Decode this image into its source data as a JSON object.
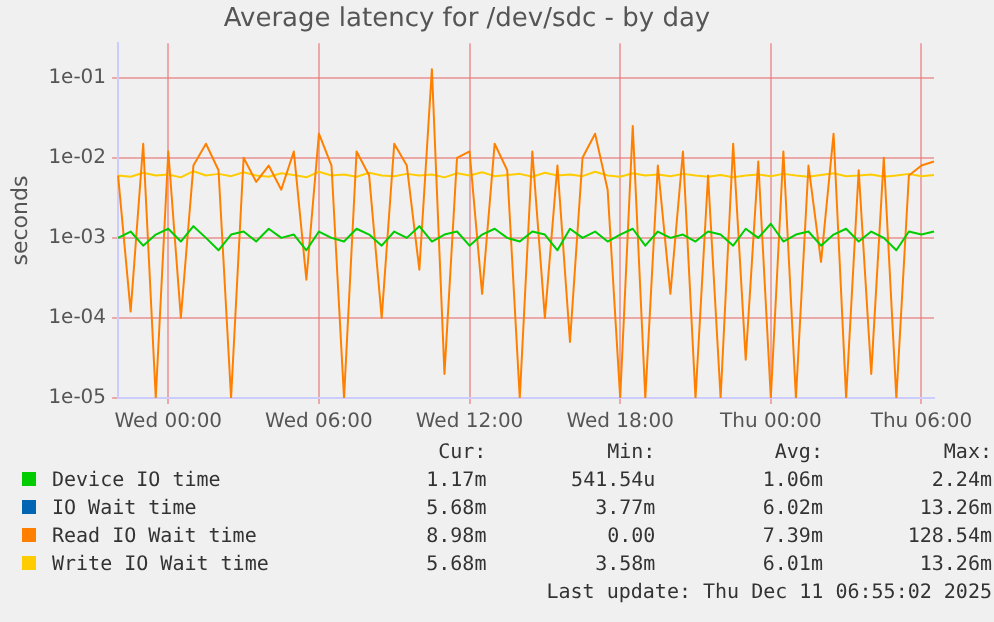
{
  "chart_data": {
    "type": "line",
    "title": "Average latency for /dev/sdc - by day",
    "ylabel": "seconds",
    "categories": [
      null,
      null,
      null,
      null,
      "Wed 00:00",
      null,
      null,
      null,
      null,
      null,
      null,
      null,
      null,
      null,
      null,
      null,
      "Wed 06:00",
      null,
      null,
      null,
      null,
      null,
      null,
      null,
      null,
      null,
      null,
      null,
      "Wed 12:00",
      null,
      null,
      null,
      null,
      null,
      null,
      null,
      null,
      null,
      null,
      null,
      "Wed 18:00",
      null,
      null,
      null,
      null,
      null,
      null,
      null,
      null,
      null,
      null,
      null,
      "Thu 00:00",
      null,
      null,
      null,
      null,
      null,
      null,
      null,
      null,
      null,
      null,
      null,
      "Thu 06:00",
      null
    ],
    "ylim": [
      1e-05,
      0.27
    ],
    "yticks": [
      {
        "value": 1e-05,
        "label": "1e-05"
      },
      {
        "value": 0.0001,
        "label": "1e-04"
      },
      {
        "value": 0.001,
        "label": "1e-03"
      },
      {
        "value": 0.01,
        "label": "1e-02"
      },
      {
        "value": 0.1,
        "label": "1e-01"
      }
    ],
    "log": "y",
    "grid": true,
    "legend": "bottom",
    "marker": "none",
    "line_style": "solid",
    "series": [
      {
        "name": "Device IO time",
        "color": "#00cc00",
        "values": [
          0.001,
          0.0012,
          0.0008,
          0.0011,
          0.0013,
          0.0009,
          0.0014,
          0.001,
          0.0007,
          0.0011,
          0.0012,
          0.0009,
          0.0013,
          0.001,
          0.0011,
          0.0007,
          0.0012,
          0.001,
          0.0009,
          0.0013,
          0.0011,
          0.0008,
          0.0012,
          0.001,
          0.0014,
          0.0009,
          0.0011,
          0.0012,
          0.0008,
          0.0011,
          0.0013,
          0.001,
          0.0009,
          0.0012,
          0.0011,
          0.0007,
          0.0013,
          0.001,
          0.0012,
          0.0009,
          0.0011,
          0.0013,
          0.0008,
          0.0012,
          0.001,
          0.0011,
          0.0009,
          0.0012,
          0.0011,
          0.0008,
          0.0013,
          0.001,
          0.0015,
          0.0009,
          0.0011,
          0.0012,
          0.0008,
          0.0011,
          0.0013,
          0.0009,
          0.0012,
          0.001,
          0.0007,
          0.0012,
          0.0011,
          0.0012
        ]
      },
      {
        "name": "IO Wait time",
        "color": "#0066b3",
        "values": [
          null,
          null,
          null,
          null,
          null,
          null,
          null,
          null,
          null,
          null,
          null,
          null,
          null,
          null,
          null,
          null,
          null,
          null,
          null,
          null,
          null,
          null,
          null,
          null,
          null,
          null,
          null,
          null,
          null,
          null,
          null,
          null,
          null,
          null,
          null,
          null,
          null,
          null,
          null,
          null,
          null,
          null,
          null,
          null,
          null,
          null,
          null,
          null,
          null,
          null,
          null,
          null,
          null,
          null,
          null,
          null,
          null,
          null,
          null,
          null,
          null,
          null,
          null,
          null,
          null,
          null
        ]
      },
      {
        "name": "Read IO Wait time",
        "color": "#ff8000",
        "values": [
          0.006,
          0.00012,
          0.015,
          1e-05,
          0.012,
          0.0001,
          0.008,
          0.015,
          0.007,
          1e-05,
          0.01,
          0.005,
          0.008,
          0.004,
          0.012,
          0.0003,
          0.02,
          0.008,
          1e-05,
          0.012,
          0.006,
          0.0001,
          0.015,
          0.008,
          0.0004,
          0.128,
          2e-05,
          0.01,
          0.012,
          0.0002,
          0.015,
          0.007,
          1e-05,
          0.012,
          0.0001,
          0.008,
          5e-05,
          0.01,
          0.02,
          0.004,
          1e-05,
          0.025,
          1e-05,
          0.008,
          0.0002,
          0.012,
          1e-05,
          0.006,
          1e-05,
          0.015,
          3e-05,
          0.009,
          1e-05,
          0.012,
          1e-05,
          0.008,
          0.0005,
          0.02,
          1e-05,
          0.007,
          2e-05,
          0.01,
          1e-05,
          0.006,
          0.008,
          0.009
        ]
      },
      {
        "name": "Write IO Wait time",
        "color": "#ffcc00",
        "values": [
          0.006,
          0.0058,
          0.0065,
          0.006,
          0.0062,
          0.0057,
          0.0068,
          0.006,
          0.0063,
          0.0059,
          0.0066,
          0.006,
          0.0058,
          0.0064,
          0.0061,
          0.0057,
          0.0067,
          0.006,
          0.0062,
          0.0058,
          0.0065,
          0.006,
          0.0059,
          0.0063,
          0.006,
          0.0062,
          0.0057,
          0.0064,
          0.006,
          0.0066,
          0.0059,
          0.0061,
          0.0063,
          0.0058,
          0.0065,
          0.006,
          0.0062,
          0.0059,
          0.0067,
          0.006,
          0.0058,
          0.0064,
          0.006,
          0.0062,
          0.0059,
          0.0063,
          0.006,
          0.0058,
          0.0061,
          0.0057,
          0.006,
          0.0062,
          0.0059,
          0.0063,
          0.006,
          0.0058,
          0.0061,
          0.0064,
          0.0059,
          0.006,
          0.0062,
          0.0058,
          0.006,
          0.0063,
          0.0059,
          0.0061
        ]
      }
    ],
    "annotations": [
      "Cur:",
      "Min:",
      "Avg:",
      "Max:",
      "1.17m",
      "541.54u",
      "1.06m",
      "2.24m",
      "5.68m",
      "3.77m",
      "6.02m",
      "13.26m",
      "8.98m",
      "0.00",
      "7.39m",
      "128.54m",
      "5.68m",
      "3.58m",
      "6.01m",
      "13.26m",
      "Last update: Thu Dec 11 06:55:02 2025"
    ]
  }
}
